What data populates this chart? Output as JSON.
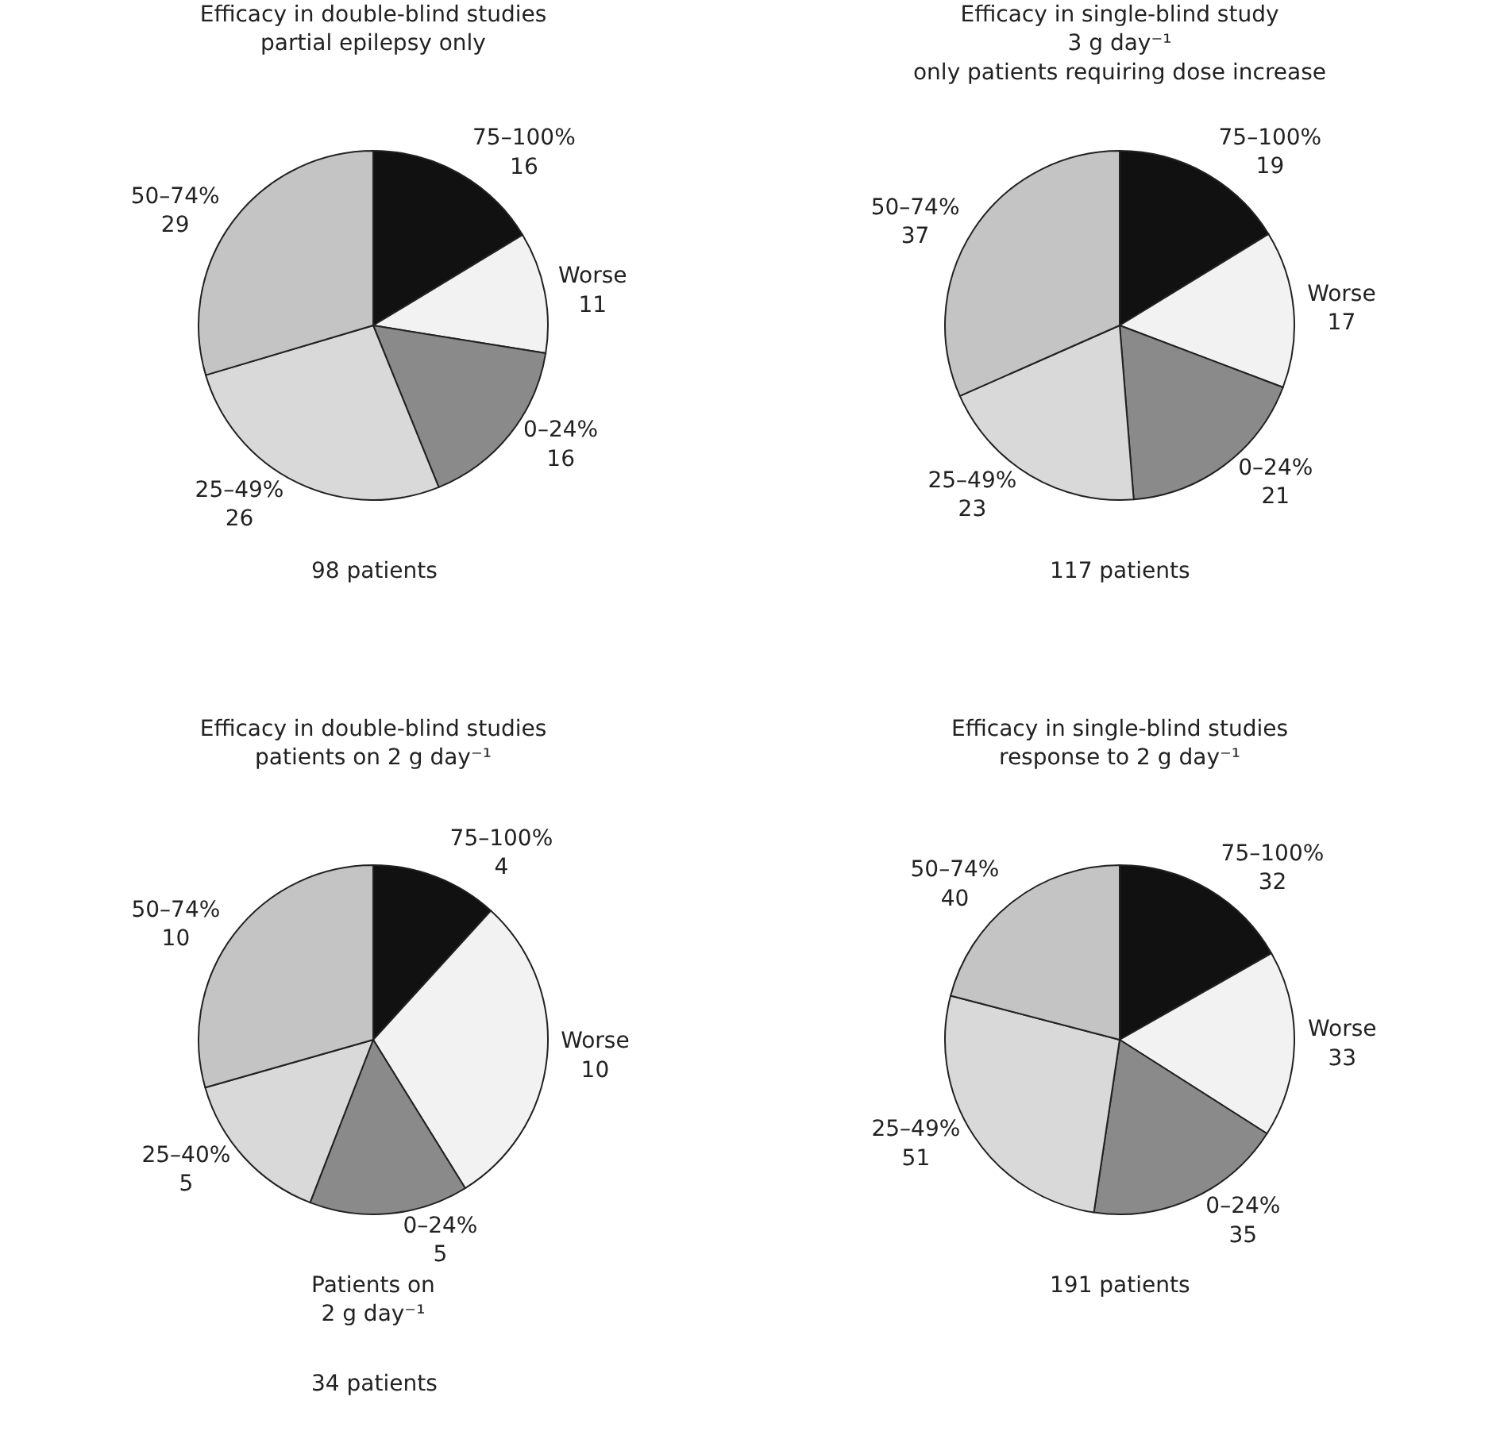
{
  "chart_data": [
    {
      "type": "pie",
      "title": "Efficacy in double-blind studies",
      "subtitle": "partial epilepsy only",
      "categories": [
        "75–100%",
        "Worse",
        "0–24%",
        "25–49%",
        "50–74%"
      ],
      "values": [
        16,
        11,
        16,
        26,
        29
      ],
      "colors": [
        "#111111",
        "#f2f2f2",
        "#8a8a8a",
        "#d9d9d9",
        "#c4c4c4"
      ],
      "data_labels": true,
      "legend": false,
      "annotations": [
        "98 patients"
      ]
    },
    {
      "type": "pie",
      "title": "Efficacy in single-blind study",
      "subtitle": "3 g day⁻¹\nonly patients requiring dose increase",
      "categories": [
        "75–100%",
        "Worse",
        "0–24%",
        "25–49%",
        "50–74%"
      ],
      "values": [
        19,
        17,
        21,
        23,
        37
      ],
      "colors": [
        "#111111",
        "#f2f2f2",
        "#8a8a8a",
        "#d9d9d9",
        "#c4c4c4"
      ],
      "data_labels": true,
      "legend": false,
      "annotations": [
        "117 patients"
      ]
    },
    {
      "type": "pie",
      "title": "Efficacy in double-blind studies",
      "subtitle": "patients on 2 g day⁻¹",
      "categories": [
        "75–100%",
        "Worse",
        "0–24%",
        "25–40%",
        "50–74%"
      ],
      "values": [
        4,
        10,
        5,
        5,
        10
      ],
      "colors": [
        "#111111",
        "#f2f2f2",
        "#8a8a8a",
        "#d9d9d9",
        "#c4c4c4"
      ],
      "data_labels": true,
      "legend": false,
      "annotations": [
        "Patients on\n2 g day⁻¹",
        "34 patients"
      ]
    },
    {
      "type": "pie",
      "title": "Efficacy in single-blind studies",
      "subtitle": "response to 2 g day⁻¹",
      "categories": [
        "75–100%",
        "Worse",
        "0–24%",
        "25–49%",
        "50–74%"
      ],
      "values": [
        32,
        33,
        35,
        51,
        40
      ],
      "colors": [
        "#111111",
        "#f2f2f2",
        "#8a8a8a",
        "#d9d9d9",
        "#c4c4c4"
      ],
      "data_labels": true,
      "legend": false,
      "annotations": [
        "191 patients"
      ]
    }
  ]
}
